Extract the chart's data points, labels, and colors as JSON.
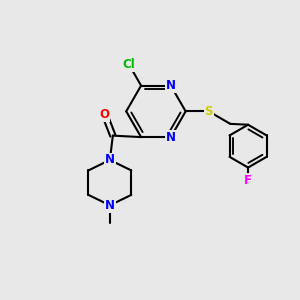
{
  "bg_color": "#e8e8e8",
  "bond_color": "#000000",
  "bond_width": 1.5,
  "atom_colors": {
    "Cl": "#00bb00",
    "N": "#0000ff",
    "O": "#ff0000",
    "S": "#cccc00",
    "F": "#ff00ff",
    "C": "#000000"
  },
  "font_size": 8.5,
  "fig_width": 3.0,
  "fig_height": 3.0,
  "dpi": 100
}
